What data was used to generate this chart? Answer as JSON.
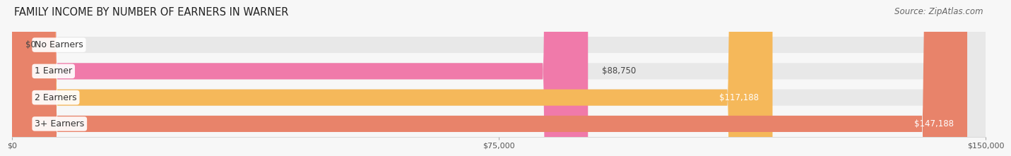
{
  "title": "FAMILY INCOME BY NUMBER OF EARNERS IN WARNER",
  "source": "Source: ZipAtlas.com",
  "categories": [
    "No Earners",
    "1 Earner",
    "2 Earners",
    "3+ Earners"
  ],
  "values": [
    0,
    88750,
    117188,
    147188
  ],
  "max_value": 150000,
  "bar_colors": [
    "#b0aedd",
    "#f07aaa",
    "#f5b85a",
    "#e8836a"
  ],
  "bar_bg_color": "#e8e8e8",
  "value_labels": [
    "$0",
    "$88,750",
    "$117,188",
    "$147,188"
  ],
  "value_label_inside": [
    false,
    false,
    true,
    true
  ],
  "x_ticks": [
    0,
    75000,
    150000
  ],
  "x_tick_labels": [
    "$0",
    "$75,000",
    "$150,000"
  ],
  "background_color": "#f7f7f7",
  "title_fontsize": 10.5,
  "source_fontsize": 8.5,
  "cat_label_fontsize": 9,
  "value_fontsize": 8.5
}
